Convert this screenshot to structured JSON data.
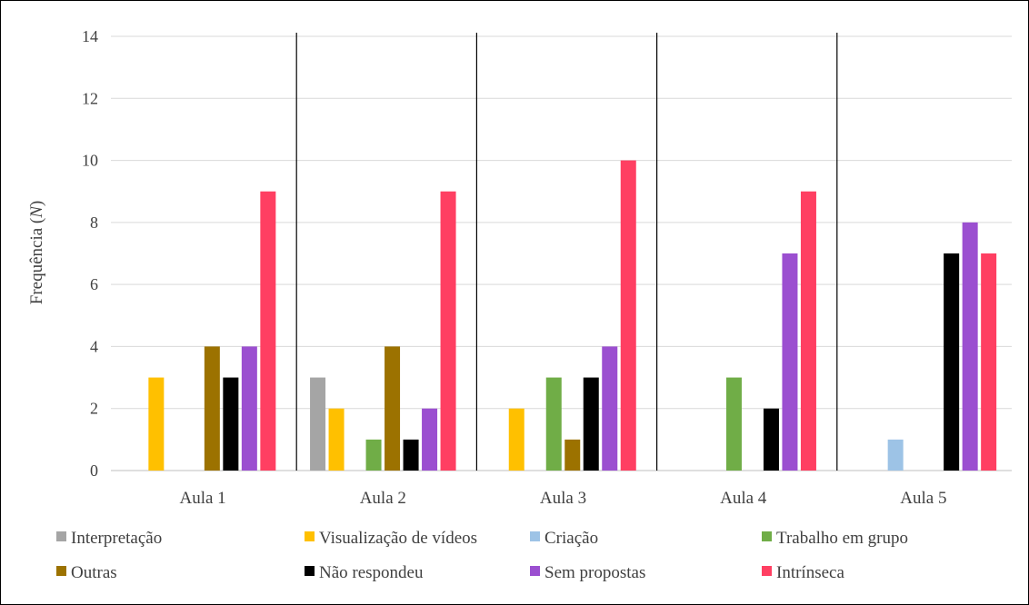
{
  "chart_data": {
    "type": "bar",
    "ylabel_prefix": "Frequência (",
    "ylabel_var": "N",
    "ylabel_suffix": ")",
    "ylim": [
      0,
      14
    ],
    "yticks": [
      0,
      2,
      4,
      6,
      8,
      10,
      12,
      14
    ],
    "grid": true,
    "legend_position": "bottom",
    "categories": [
      "Aula 1",
      "Aula 2",
      "Aula 3",
      "Aula 4",
      "Aula 5"
    ],
    "series": [
      {
        "name": "Interpretação",
        "color": "#a5a5a5",
        "values": [
          0,
          3,
          0,
          0,
          0
        ]
      },
      {
        "name": "Visualização de vídeos",
        "color": "#ffc000",
        "values": [
          3,
          2,
          2,
          0,
          0
        ]
      },
      {
        "name": "Criação",
        "color": "#9dc3e6",
        "values": [
          0,
          0,
          0,
          0,
          1
        ]
      },
      {
        "name": "Trabalho em grupo",
        "color": "#70ad47",
        "values": [
          0,
          1,
          3,
          3,
          0
        ]
      },
      {
        "name": "Outras",
        "color": "#9c7200",
        "values": [
          4,
          4,
          1,
          0,
          0
        ]
      },
      {
        "name": "Não respondeu",
        "color": "#000000",
        "values": [
          3,
          1,
          3,
          2,
          7
        ]
      },
      {
        "name": "Sem propostas",
        "color": "#9b4fd0",
        "values": [
          4,
          2,
          4,
          7,
          8
        ]
      },
      {
        "name": "Intrínseca",
        "color": "#ff3f62",
        "values": [
          9,
          9,
          10,
          9,
          7
        ]
      }
    ]
  }
}
